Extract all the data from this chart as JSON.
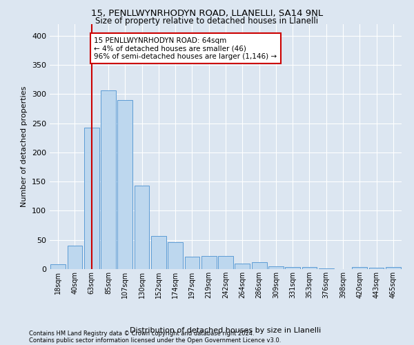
{
  "title1": "15, PENLLWYNRHODYN ROAD, LLANELLI, SA14 9NL",
  "title2": "Size of property relative to detached houses in Llanelli",
  "xlabel": "Distribution of detached houses by size in Llanelli",
  "ylabel": "Number of detached properties",
  "footnote1": "Contains HM Land Registry data © Crown copyright and database right 2024.",
  "footnote2": "Contains public sector information licensed under the Open Government Licence v3.0.",
  "annotation_line1": "15 PENLLWYNRHODYN ROAD: 64sqm",
  "annotation_line2": "← 4% of detached houses are smaller (46)",
  "annotation_line3": "96% of semi-detached houses are larger (1,146) →",
  "categories": [
    "18sqm",
    "40sqm",
    "63sqm",
    "85sqm",
    "107sqm",
    "130sqm",
    "152sqm",
    "174sqm",
    "197sqm",
    "219sqm",
    "242sqm",
    "264sqm",
    "286sqm",
    "309sqm",
    "331sqm",
    "353sqm",
    "376sqm",
    "398sqm",
    "420sqm",
    "443sqm",
    "465sqm"
  ],
  "values": [
    8,
    40,
    242,
    307,
    290,
    143,
    57,
    46,
    21,
    22,
    22,
    9,
    12,
    5,
    4,
    3,
    1,
    0,
    3,
    2,
    4
  ],
  "vline_bin_index": 2,
  "bar_color": "#bdd7ee",
  "bar_edge_color": "#5b9bd5",
  "vline_color": "#cc0000",
  "annotation_box_facecolor": "#ffffff",
  "annotation_box_edgecolor": "#cc0000",
  "bg_color": "#dce6f1",
  "grid_color": "#ffffff",
  "ylim": [
    0,
    420
  ],
  "yticks": [
    0,
    50,
    100,
    150,
    200,
    250,
    300,
    350,
    400
  ]
}
